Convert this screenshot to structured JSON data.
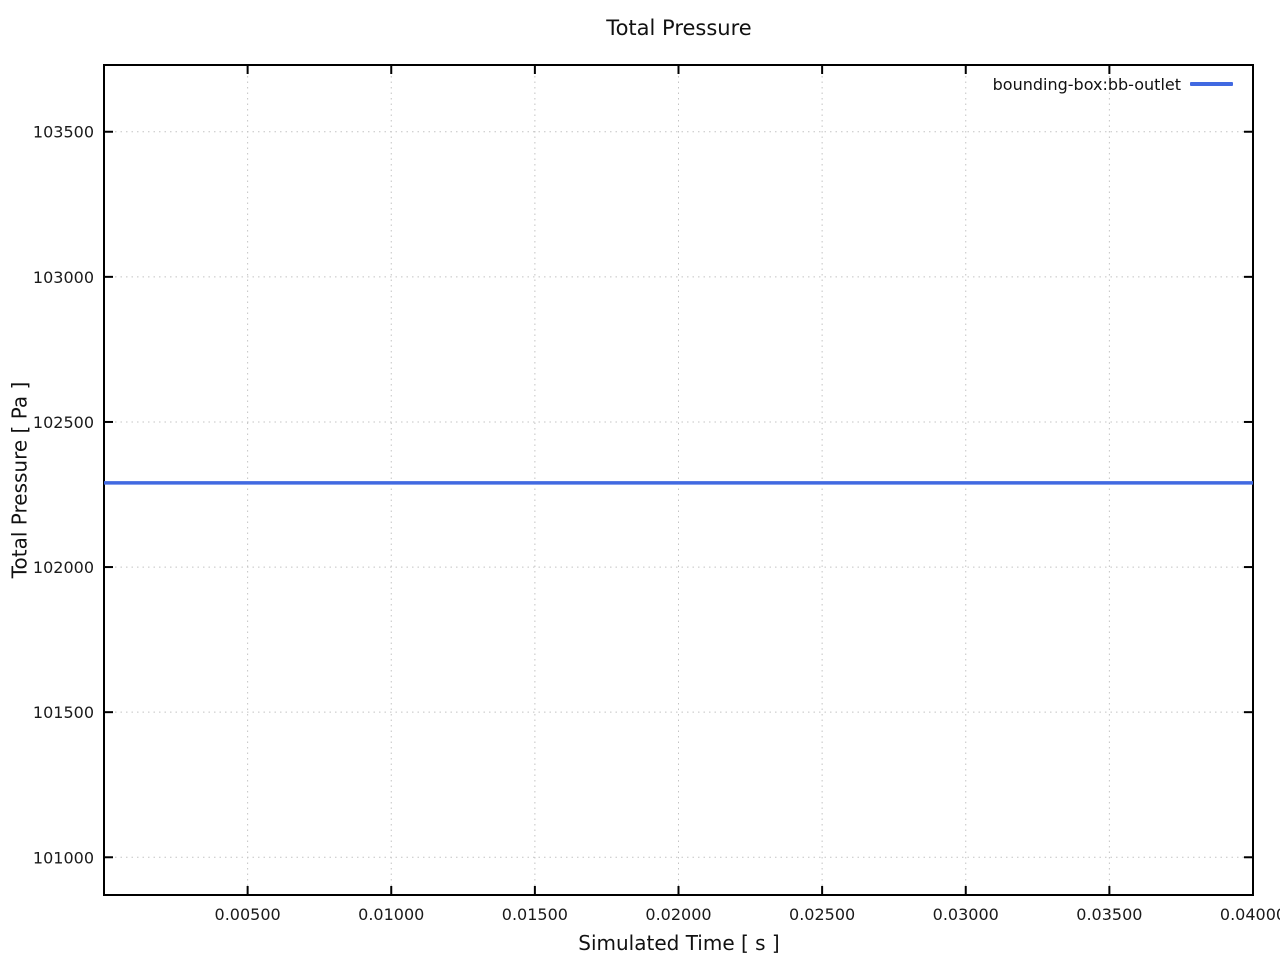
{
  "chart_data": {
    "type": "line",
    "title": "Total Pressure",
    "xlabel": "Simulated Time [ s ]",
    "ylabel": "Total Pressure [ Pa ]",
    "xlim": [
      0,
      0.04
    ],
    "ylim": [
      100870,
      103730
    ],
    "grid": true,
    "legend_position": "inside-top-right",
    "xticks": [
      {
        "value": 0.005,
        "label": "0.00500"
      },
      {
        "value": 0.01,
        "label": "0.01000"
      },
      {
        "value": 0.015,
        "label": "0.01500"
      },
      {
        "value": 0.02,
        "label": "0.02000"
      },
      {
        "value": 0.025,
        "label": "0.02500"
      },
      {
        "value": 0.03,
        "label": "0.03000"
      },
      {
        "value": 0.035,
        "label": "0.03500"
      },
      {
        "value": 0.04,
        "label": "0.04000"
      }
    ],
    "yticks": [
      {
        "value": 101000,
        "label": "101000"
      },
      {
        "value": 101500,
        "label": "101500"
      },
      {
        "value": 102000,
        "label": "102000"
      },
      {
        "value": 102500,
        "label": "102500"
      },
      {
        "value": 103000,
        "label": "103000"
      },
      {
        "value": 103500,
        "label": "103500"
      }
    ],
    "series": [
      {
        "name": "bounding-box:bb-outlet",
        "color": "#4169e1",
        "x": [
          0,
          0.04
        ],
        "y": [
          102290,
          102290
        ]
      }
    ],
    "colors": {
      "grid": "#c4c4c4",
      "axis": "#000000",
      "text": "#1a1a1a"
    }
  }
}
